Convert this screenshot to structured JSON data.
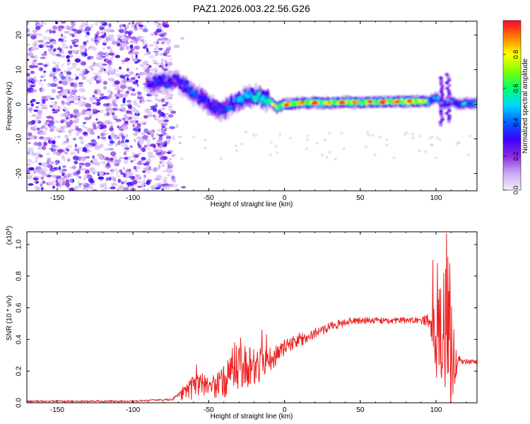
{
  "chart_data": [
    {
      "type": "heatmap",
      "title": "PAZ1.2026.003.22.56.G26",
      "xlabel": "Height of straight line (km)",
      "ylabel": "Frequency (Hz)",
      "xlim": [
        -170,
        127
      ],
      "ylim": [
        -25,
        24
      ],
      "xticks": [
        -150,
        -100,
        -50,
        0,
        50,
        100
      ],
      "xtick_labels": [
        "-150",
        "-100",
        "-50",
        "0",
        "50",
        "100"
      ],
      "yticks": [
        20,
        10,
        0,
        -10,
        -20
      ],
      "ytick_labels": [
        "20",
        "10",
        "0",
        "-10",
        "-20"
      ],
      "colorbar": {
        "label": "Normalized spectral amplitude",
        "range": [
          0,
          1
        ],
        "ticks": [
          0.0,
          0.2,
          0.4,
          0.6,
          0.8
        ],
        "tick_labels": [
          "0.0",
          "0.2",
          "0.4",
          "0.6",
          "0.8"
        ],
        "colors": [
          "#f4eefc",
          "#c9a8f2",
          "#8a2be2",
          "#3b00ff",
          "#0060ff",
          "#00d8ff",
          "#00ff70",
          "#80ff00",
          "#ffff00",
          "#ff8000",
          "#ff0030"
        ]
      },
      "ridge": {
        "x": [
          -90,
          -80,
          -72,
          -65,
          -60,
          -55,
          -50,
          -45,
          -40,
          -35,
          -30,
          -25,
          -20,
          -15,
          -10,
          -5,
          0,
          10,
          20,
          30,
          40,
          50,
          60,
          70,
          80,
          90,
          95,
          100,
          105,
          110,
          115,
          120,
          127
        ],
        "frequency": [
          6,
          6.5,
          7,
          5,
          3,
          2,
          0,
          -1,
          -2,
          0,
          1,
          2,
          2.5,
          2,
          1,
          -1,
          0,
          0.3,
          0.5,
          0.4,
          0.6,
          0.5,
          0.6,
          0.7,
          0.8,
          0.8,
          0.7,
          2,
          0,
          1,
          0,
          0.2,
          0.2
        ],
        "amplitude": [
          0.3,
          0.35,
          0.3,
          0.35,
          0.4,
          0.3,
          0.35,
          0.3,
          0.35,
          0.4,
          0.45,
          0.5,
          0.5,
          0.55,
          0.6,
          0.75,
          0.9,
          0.85,
          0.9,
          0.85,
          0.9,
          0.85,
          0.9,
          0.85,
          0.95,
          0.9,
          0.6,
          0.4,
          0.5,
          0.4,
          0.45,
          0.5,
          0.5
        ]
      },
      "noise_region_x": [
        -170,
        -75
      ],
      "noise_amplitude": [
        0.05,
        0.35
      ]
    },
    {
      "type": "line",
      "xlabel": "Height of straight line (km)",
      "ylabel": "SNR (10 * v/v)",
      "y_multiplier": "(x10",
      "y_multiplier_exp": "4",
      "y_multiplier_close": ")",
      "xlim": [
        -170,
        127
      ],
      "ylim": [
        0,
        1.08
      ],
      "xticks": [
        -150,
        -100,
        -50,
        0,
        50,
        100
      ],
      "xtick_labels": [
        "-150",
        "-100",
        "-50",
        "0",
        "50",
        "100"
      ],
      "yticks": [
        0.0,
        0.2,
        0.4,
        0.6,
        0.8,
        1.0
      ],
      "ytick_labels": [
        "0.0",
        "0.2",
        "0.4",
        "0.6",
        "0.8",
        "1.0"
      ],
      "color": "#ee2222",
      "envelope_x": [
        -170,
        -100,
        -75,
        -68,
        -60,
        -55,
        -50,
        -40,
        -35,
        -30,
        -25,
        -20,
        -15,
        -10,
        -5,
        0,
        10,
        20,
        30,
        40,
        50,
        60,
        70,
        80,
        90,
        96,
        98,
        100,
        104,
        107,
        110,
        115,
        118,
        127
      ],
      "envelope_y": [
        0.01,
        0.01,
        0.02,
        0.05,
        0.1,
        0.12,
        0.1,
        0.12,
        0.22,
        0.22,
        0.22,
        0.22,
        0.25,
        0.28,
        0.3,
        0.35,
        0.4,
        0.44,
        0.48,
        0.51,
        0.52,
        0.52,
        0.52,
        0.52,
        0.52,
        0.52,
        0.5,
        0.4,
        0.45,
        0.5,
        0.3,
        0.27,
        0.26,
        0.26
      ],
      "noise_amp_x": [
        -170,
        -75,
        -70,
        -60,
        -50,
        -40,
        -30,
        -20,
        -10,
        0,
        20,
        40,
        60,
        90,
        96,
        98,
        102,
        106,
        108,
        110,
        113,
        116,
        127
      ],
      "noise_amp_y": [
        0.006,
        0.006,
        0.03,
        0.08,
        0.06,
        0.1,
        0.16,
        0.12,
        0.08,
        0.05,
        0.04,
        0.025,
        0.02,
        0.02,
        0.05,
        0.18,
        0.35,
        0.45,
        0.5,
        0.35,
        0.12,
        0.02,
        0.015
      ],
      "peaks": [
        {
          "x": -58,
          "y": 0.24
        },
        {
          "x": -40,
          "y": 0.23
        },
        {
          "x": -33,
          "y": 0.38
        },
        {
          "x": -29,
          "y": 0.41
        },
        {
          "x": -15,
          "y": 0.46
        },
        {
          "x": -12,
          "y": 0.43
        },
        {
          "x": 98,
          "y": 0.9
        },
        {
          "x": 101,
          "y": 0.88
        },
        {
          "x": 103,
          "y": 0.72
        },
        {
          "x": 105,
          "y": 0.82
        },
        {
          "x": 107,
          "y": 1.07
        },
        {
          "x": 109,
          "y": 0.88
        },
        {
          "x": 110,
          "y": 0.05
        },
        {
          "x": 106,
          "y": 0.1
        }
      ]
    }
  ]
}
